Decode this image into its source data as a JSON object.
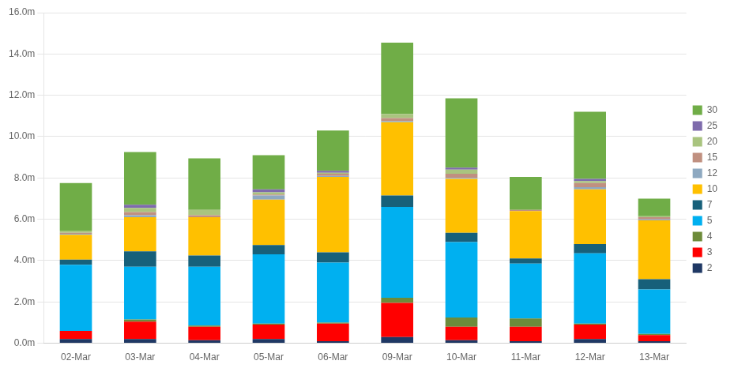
{
  "chart_data": {
    "type": "bar",
    "stacked": true,
    "categories": [
      "02-Mar",
      "03-Mar",
      "04-Mar",
      "05-Mar",
      "06-Mar",
      "09-Mar",
      "10-Mar",
      "11-Mar",
      "12-Mar",
      "13-Mar"
    ],
    "series": [
      {
        "name": "2",
        "color": "#1f3864",
        "values": [
          0.2,
          0.2,
          0.15,
          0.2,
          0.1,
          0.3,
          0.15,
          0.1,
          0.2,
          0.1
        ]
      },
      {
        "name": "3",
        "color": "#ff0000",
        "values": [
          0.4,
          0.85,
          0.65,
          0.7,
          0.85,
          1.65,
          0.65,
          0.7,
          0.7,
          0.3
        ]
      },
      {
        "name": "4",
        "color": "#6d8b3a",
        "values": [
          0.0,
          0.1,
          0.05,
          0.05,
          0.05,
          0.25,
          0.45,
          0.4,
          0.05,
          0.05
        ]
      },
      {
        "name": "5",
        "color": "#00b0f0",
        "values": [
          3.2,
          2.55,
          2.85,
          3.35,
          2.9,
          4.4,
          3.65,
          2.65,
          3.4,
          2.15
        ]
      },
      {
        "name": "7",
        "color": "#17607a",
        "values": [
          0.25,
          0.75,
          0.55,
          0.45,
          0.5,
          0.55,
          0.45,
          0.25,
          0.45,
          0.5
        ]
      },
      {
        "name": "10",
        "color": "#ffc000",
        "values": [
          1.2,
          1.65,
          1.85,
          2.2,
          3.65,
          3.55,
          2.6,
          2.3,
          2.65,
          2.85
        ]
      },
      {
        "name": "12",
        "color": "#8ea9c1",
        "values": [
          0.05,
          0.1,
          0.0,
          0.2,
          0.05,
          0.05,
          0.05,
          0.0,
          0.1,
          0.05
        ]
      },
      {
        "name": "15",
        "color": "#c09080",
        "values": [
          0.05,
          0.15,
          0.1,
          0.05,
          0.1,
          0.15,
          0.2,
          0.05,
          0.2,
          0.1
        ]
      },
      {
        "name": "20",
        "color": "#a9c47f",
        "values": [
          0.1,
          0.2,
          0.25,
          0.1,
          0.05,
          0.2,
          0.2,
          0.0,
          0.1,
          0.05
        ]
      },
      {
        "name": "25",
        "color": "#7e6bac",
        "values": [
          0.0,
          0.15,
          0.0,
          0.15,
          0.1,
          0.0,
          0.1,
          0.0,
          0.1,
          0.0
        ]
      },
      {
        "name": "30",
        "color": "#70ad47",
        "values": [
          2.3,
          2.55,
          2.5,
          1.65,
          1.95,
          3.45,
          3.35,
          1.6,
          3.25,
          0.85
        ]
      }
    ],
    "ylim": [
      0,
      16
    ],
    "yticks": [
      {
        "value": 0,
        "label": "0.0m"
      },
      {
        "value": 2,
        "label": "2.0m"
      },
      {
        "value": 4,
        "label": "4.0m"
      },
      {
        "value": 6,
        "label": "6.0m"
      },
      {
        "value": 8,
        "label": "8.0m"
      },
      {
        "value": 10,
        "label": "10.0m"
      },
      {
        "value": 12,
        "label": "12.0m"
      },
      {
        "value": 14,
        "label": "14.0m"
      },
      {
        "value": 16,
        "label": "16.0m"
      }
    ],
    "grid": true,
    "legend": "right"
  }
}
